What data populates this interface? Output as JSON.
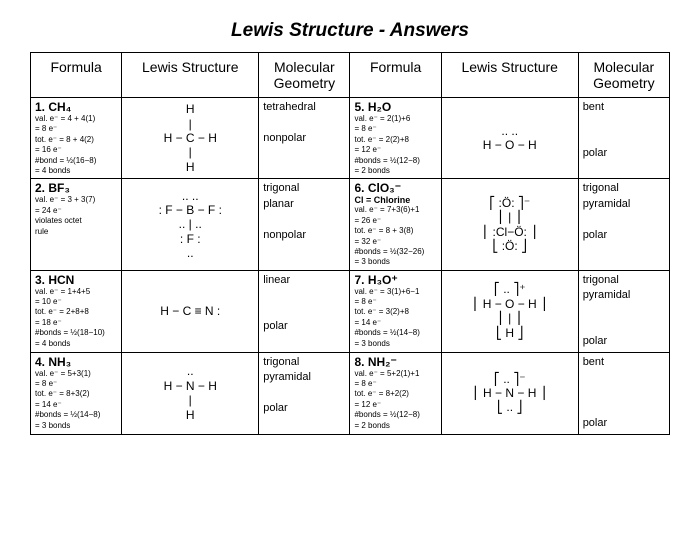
{
  "title": "Lewis Structure - Answers",
  "headers": [
    "Formula",
    "Lewis Structure",
    "Molecular Geometry",
    "Formula",
    "Lewis Structure",
    "Molecular Geometry"
  ],
  "rows": [
    {
      "left": {
        "num": "1.  CH₄",
        "calc": "val. e⁻ = 4 + 4(1)\n   = 8 e⁻\ntot. e⁻ = 8 + 4(2)\n   = 16 e⁻\n#bond = ½(16−8)\n   = 4 bonds",
        "lewis": "H\n|\nH − C − H\n|\nH",
        "geom": "tetrahedral\n\nnonpolar"
      },
      "right": {
        "num": "5.  H₂O",
        "calc": "val. e⁻ = 2(1)+6\n   = 8 e⁻\ntot. e⁻ = 2(2)+8\n   = 12 e⁻\n#bonds = ½(12−8)\n   = 2 bonds",
        "lewis": "..   ..\nH − O − H",
        "geom": "bent\n\n\npolar"
      }
    },
    {
      "left": {
        "num": "2.  BF₃",
        "calc": "val. e⁻ = 3 + 3(7)\n   = 24 e⁻\nviolates octet\nrule",
        "lewis": "..        ..\n: F − B − F :\n..    |    ..\n: F :\n..",
        "geom": "trigonal\nplanar\n\nnonpolar"
      },
      "right": {
        "num": "6.  ClO₃⁻",
        "extra": "Cl = Chlorine",
        "calc": "val. e⁻ = 7+3(6)+1\n   = 26 e⁻\ntot. e⁻ = 8 + 3(8)\n   = 32 e⁻\n#bonds = ½(32−26)\n   = 3 bonds",
        "lewis": "⎡  :Ö:     ⎤⁻\n⎢   |       ⎥\n⎢ :Cl−Ö: ⎥\n⎣  :Ö:     ⎦",
        "geom": "trigonal\npyramidal\n\npolar"
      }
    },
    {
      "left": {
        "num": "3.  HCN",
        "calc": "val. e⁻ = 1+4+5\n   = 10 e⁻\ntot. e⁻ = 2+8+8\n   = 18 e⁻\n#bonds = ½(18−10)\n   = 4 bonds",
        "lewis": "H − C ≡ N :",
        "geom": "linear\n\n\npolar"
      },
      "right": {
        "num": "7.  H₃O⁺",
        "calc": "val. e⁻ = 3(1)+6−1\n   = 8 e⁻\ntot. e⁻ = 3(2)+8\n   = 14 e⁻\n#bonds = ½(14−8)\n   = 3 bonds",
        "lewis": "⎡      ..      ⎤⁺\n⎢ H − O − H ⎥\n⎢      |       ⎥\n⎣      H      ⎦",
        "geom": "trigonal\npyramidal\n\n\npolar"
      }
    },
    {
      "left": {
        "num": "4.  NH₃",
        "calc": "val. e⁻ = 5+3(1)\n   = 8 e⁻\ntot. e⁻ = 8+3(2)\n   = 14 e⁻\n#bonds = ½(14−8)\n   = 3 bonds",
        "lewis": "..\nH − N − H\n|\nH",
        "geom": "trigonal\npyramidal\n\npolar"
      },
      "right": {
        "num": "8.  NH₂⁻",
        "calc": "val. e⁻ = 5+2(1)+1\n   = 8 e⁻\ntot. e⁻ = 8+2(2)\n   = 12 e⁻\n#bonds = ½(12−8)\n   = 2 bonds",
        "lewis": "⎡      ..      ⎤⁻\n⎢ H − N − H ⎥\n⎣      ..       ⎦",
        "geom": "bent\n\n\n\npolar"
      }
    }
  ]
}
